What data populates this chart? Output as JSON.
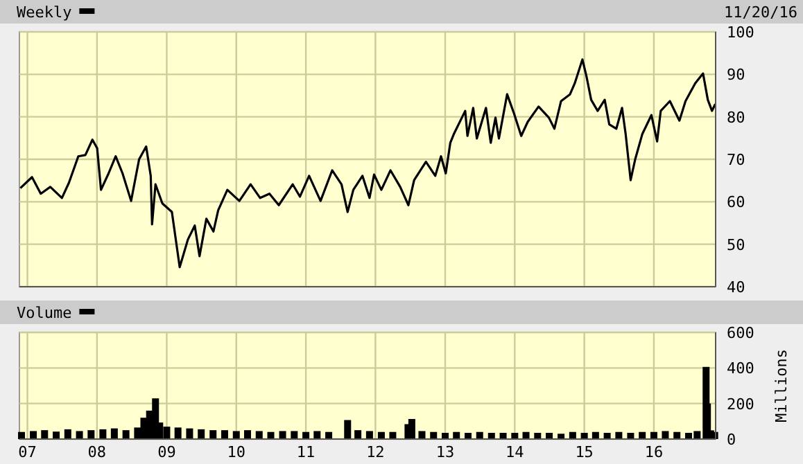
{
  "chart_data": [
    {
      "type": "line",
      "annotations": [
        "11/20/16"
      ],
      "legend": "top left",
      "grid": true,
      "tick_labels": "y",
      "xlim": [
        "2006-11-20",
        "2016-11-20"
      ],
      "xticks": [
        {
          "value": "2007-01-01",
          "label": null
        },
        {
          "value": "2008-01-01",
          "label": null
        },
        {
          "value": "2009-01-01",
          "label": null
        },
        {
          "value": "2010-01-01",
          "label": null
        },
        {
          "value": "2011-01-01",
          "label": null
        },
        {
          "value": "2012-01-01",
          "label": null
        },
        {
          "value": "2013-01-01",
          "label": null
        },
        {
          "value": "2014-01-01",
          "label": null
        },
        {
          "value": "2015-01-01",
          "label": null
        },
        {
          "value": "2016-01-01",
          "label": null
        }
      ],
      "ylim": [
        40,
        100
      ],
      "yticks": [
        40,
        50,
        60,
        70,
        80,
        90,
        100
      ],
      "x": [
        "2006-11-25",
        "2007-01-25",
        "2007-03-12",
        "2007-05-01",
        "2007-07-01",
        "2007-08-07",
        "2007-09-25",
        "2007-11-01",
        "2007-12-08",
        "2008-01-02",
        "2008-01-22",
        "2008-03-02",
        "2008-04-08",
        "2008-05-14",
        "2008-06-28",
        "2008-08-09",
        "2008-09-15",
        "2008-10-09",
        "2008-10-16",
        "2008-11-03",
        "2008-12-09",
        "2009-01-28",
        "2009-03-10",
        "2009-04-22",
        "2009-05-28",
        "2009-06-22",
        "2009-07-28",
        "2009-09-03",
        "2009-09-28",
        "2009-11-15",
        "2010-01-17",
        "2010-03-17",
        "2010-05-06",
        "2010-06-24",
        "2010-08-12",
        "2010-10-24",
        "2010-12-01",
        "2011-01-18",
        "2011-03-19",
        "2011-05-19",
        "2011-07-07",
        "2011-08-08",
        "2011-09-07",
        "2011-10-25",
        "2011-12-01",
        "2011-12-25",
        "2012-02-01",
        "2012-03-20",
        "2012-05-10",
        "2012-06-22",
        "2012-07-22",
        "2012-09-22",
        "2012-11-10",
        "2012-12-10",
        "2013-01-04",
        "2013-01-28",
        "2013-02-15",
        "2013-04-16",
        "2013-04-28",
        "2013-05-28",
        "2013-06-16",
        "2013-08-03",
        "2013-08-28",
        "2013-09-22",
        "2013-10-10",
        "2013-11-22",
        "2013-12-28",
        "2014-02-04",
        "2014-03-10",
        "2014-05-06",
        "2014-06-29",
        "2014-07-28",
        "2014-09-01",
        "2014-10-18",
        "2014-11-12",
        "2014-12-22",
        "2015-01-12",
        "2015-02-06",
        "2015-03-12",
        "2015-04-18",
        "2015-05-12",
        "2015-06-18",
        "2015-07-18",
        "2015-08-06",
        "2015-09-01",
        "2015-09-25",
        "2015-11-01",
        "2015-12-19",
        "2016-01-18",
        "2016-02-06",
        "2016-03-25",
        "2016-05-14",
        "2016-06-15",
        "2016-08-05",
        "2016-09-15",
        "2016-10-10",
        "2016-11-01",
        "2016-11-18"
      ],
      "series": [
        {
          "name": "Weekly",
          "color": "#000000",
          "values": [
            63.2,
            65.8,
            61.9,
            63.5,
            60.9,
            64.5,
            70.7,
            71,
            74.6,
            72.6,
            62.8,
            66.7,
            70.7,
            66.7,
            60.2,
            70,
            73,
            66.1,
            54.7,
            64.1,
            59.6,
            57.6,
            44.6,
            51.1,
            54.4,
            47.2,
            56,
            53,
            58,
            62.8,
            60.2,
            64.1,
            60.9,
            61.9,
            59.2,
            64.1,
            61.2,
            66.1,
            60.2,
            67.4,
            64.1,
            57.6,
            62.8,
            66.1,
            60.9,
            66.4,
            62.8,
            67.4,
            63.5,
            59.2,
            65.1,
            69.4,
            66.1,
            70.7,
            66.7,
            73.9,
            75.9,
            81.4,
            75.5,
            82.1,
            74.9,
            82.1,
            73.9,
            79.8,
            74.9,
            85.3,
            80.8,
            75.5,
            78.8,
            82.4,
            79.8,
            77.2,
            83.7,
            85.3,
            87.9,
            93.5,
            89.6,
            84,
            81.4,
            84,
            78.2,
            77.2,
            82.1,
            75.9,
            65.1,
            70,
            75.9,
            80.4,
            74.2,
            81.4,
            83.7,
            79.1,
            83.7,
            87.9,
            90.2,
            84,
            81.4,
            83
          ]
        }
      ]
    },
    {
      "type": "bar",
      "ylabel": "Millions",
      "legend": "top left",
      "grid": true,
      "xlim": [
        "2006-11-20",
        "2016-11-20"
      ],
      "xticks": [
        {
          "value": "2007-01-01",
          "label": "07"
        },
        {
          "value": "2008-01-01",
          "label": "08"
        },
        {
          "value": "2009-01-01",
          "label": "09"
        },
        {
          "value": "2010-01-01",
          "label": "10"
        },
        {
          "value": "2011-01-01",
          "label": "11"
        },
        {
          "value": "2012-01-01",
          "label": "12"
        },
        {
          "value": "2013-01-01",
          "label": "13"
        },
        {
          "value": "2014-01-01",
          "label": "14"
        },
        {
          "value": "2015-01-01",
          "label": "15"
        },
        {
          "value": "2016-01-01",
          "label": "16"
        }
      ],
      "ylim": [
        0,
        600
      ],
      "yticks": [
        0,
        200,
        400,
        600
      ],
      "x": [
        "2006-12-01",
        "2007-02-01",
        "2007-04-01",
        "2007-06-01",
        "2007-08-01",
        "2007-10-01",
        "2007-12-01",
        "2008-02-01",
        "2008-04-01",
        "2008-06-01",
        "2008-08-01",
        "2008-09-03",
        "2008-10-03",
        "2008-11-03",
        "2008-11-25",
        "2009-01-01",
        "2009-03-01",
        "2009-05-01",
        "2009-07-01",
        "2009-09-01",
        "2009-11-01",
        "2010-01-01",
        "2010-03-01",
        "2010-05-01",
        "2010-07-01",
        "2010-09-01",
        "2010-11-01",
        "2011-01-01",
        "2011-03-01",
        "2011-05-01",
        "2011-08-08",
        "2011-10-01",
        "2011-12-01",
        "2012-02-01",
        "2012-04-01",
        "2012-06-20",
        "2012-07-10",
        "2012-09-01",
        "2012-11-01",
        "2013-01-01",
        "2013-03-01",
        "2013-05-01",
        "2013-07-01",
        "2013-09-01",
        "2013-11-01",
        "2014-01-01",
        "2014-03-01",
        "2014-05-01",
        "2014-07-01",
        "2014-09-01",
        "2014-11-01",
        "2015-01-01",
        "2015-03-01",
        "2015-05-01",
        "2015-07-01",
        "2015-09-01",
        "2015-11-01",
        "2016-01-01",
        "2016-03-01",
        "2016-05-01",
        "2016-07-01",
        "2016-08-15",
        "2016-10-01",
        "2016-10-08",
        "2016-10-25",
        "2016-11-15"
      ],
      "series": [
        {
          "name": "Volume",
          "color": "#000000",
          "values": [
            40,
            45,
            50,
            42,
            55,
            45,
            50,
            55,
            60,
            50,
            65,
            120,
            160,
            229,
            93,
            70,
            65,
            60,
            55,
            50,
            50,
            45,
            50,
            45,
            40,
            45,
            45,
            40,
            45,
            40,
            107,
            50,
            45,
            40,
            40,
            84,
            113,
            45,
            40,
            35,
            40,
            35,
            40,
            35,
            35,
            35,
            40,
            35,
            35,
            30,
            40,
            35,
            40,
            35,
            40,
            35,
            40,
            40,
            45,
            40,
            35,
            45,
            406,
            200,
            49,
            40
          ]
        }
      ]
    }
  ]
}
